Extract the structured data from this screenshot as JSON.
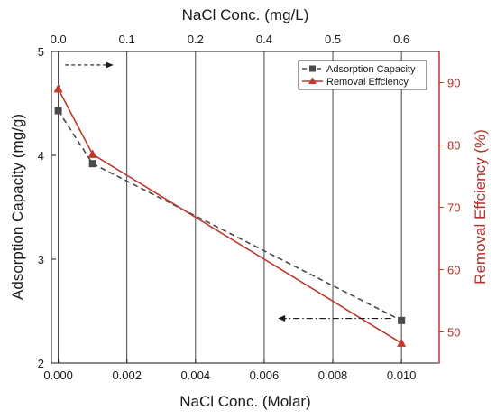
{
  "chart_data": {
    "type": "line",
    "x_bottom": {
      "label": "NaCl Conc. (Molar)",
      "range": [
        -0.0002,
        0.0111
      ],
      "ticks": [
        0.0,
        0.002,
        0.004,
        0.006,
        0.008,
        0.01
      ],
      "tick_labels": [
        "0.000",
        "0.002",
        "0.004",
        "0.006",
        "0.008",
        "0.010"
      ]
    },
    "x_top": {
      "label": "NaCl Conc. (mg/L)",
      "tick_labels": [
        "0.0",
        "0.1",
        "0.2",
        "0.4",
        "0.5",
        "0.6"
      ]
    },
    "y_left": {
      "label": "Adsorption Capacity (mg/g)",
      "range": [
        2,
        5
      ],
      "ticks": [
        2,
        3,
        4,
        5
      ],
      "tick_labels": [
        "2",
        "3",
        "4",
        "5"
      ]
    },
    "y_right": {
      "label": "Removal Effciency (%)",
      "range": [
        45,
        95
      ],
      "ticks": [
        50,
        60,
        70,
        80,
        90
      ],
      "tick_labels": [
        "50",
        "60",
        "70",
        "80",
        "90"
      ]
    },
    "grid": "vertical",
    "legend_position": "top-right",
    "series": [
      {
        "name": "Adsorption Capacity",
        "axis": "left",
        "style": "dashed",
        "marker": "square",
        "color": "#4a4a4a",
        "x": [
          0.0,
          0.001,
          0.01
        ],
        "y": [
          4.43,
          3.92,
          2.41
        ]
      },
      {
        "name": "Removal Effciency",
        "axis": "right",
        "style": "solid",
        "marker": "triangle",
        "color": "#c0392b",
        "x": [
          0.0,
          0.001,
          0.01
        ],
        "y": [
          89.0,
          78.5,
          48.2
        ]
      }
    ],
    "annotations": [
      {
        "type": "arrow",
        "direction": "right",
        "style": "dashed",
        "from": [
          0.0002,
          4.87
        ],
        "to": [
          0.0016,
          4.87
        ],
        "axis": "left"
      },
      {
        "type": "arrow",
        "direction": "left",
        "style": "dash-dot",
        "from": [
          0.0097,
          2.43
        ],
        "to": [
          0.0064,
          2.43
        ],
        "axis": "left"
      }
    ],
    "colors": {
      "axis_left": "#1a1a1a",
      "axis_right": "#c0392b",
      "grid": "#1a1a1a"
    }
  }
}
